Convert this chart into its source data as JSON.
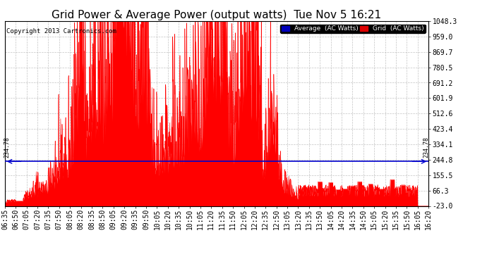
{
  "title": "Grid Power & Average Power (output watts)  Tue Nov 5 16:21",
  "copyright": "Copyright 2013 Cartronics.com",
  "legend_labels": [
    "Average  (AC Watts)",
    "Grid  (AC Watts)"
  ],
  "legend_colors": [
    "#0000bb",
    "#dd0000"
  ],
  "avg_line_value": 234.78,
  "avg_line_color": "#0000cc",
  "fill_color": "#ff0000",
  "background_color": "#ffffff",
  "plot_bg_color": "#ffffff",
  "grid_color": "#aaaaaa",
  "ytick_labels_right": [
    "1048.3",
    "959.0",
    "869.7",
    "780.5",
    "691.2",
    "601.9",
    "512.6",
    "423.4",
    "334.1",
    "244.8",
    "155.5",
    "66.3",
    "-23.0"
  ],
  "ytick_values_right": [
    1048.3,
    959.0,
    869.7,
    780.5,
    691.2,
    601.9,
    512.6,
    423.4,
    334.1,
    244.8,
    155.5,
    66.3,
    -23.0
  ],
  "ymin": -23.0,
  "ymax": 1048.3,
  "xstart_minutes": 395,
  "xend_minutes": 980,
  "xtick_interval_minutes": 15,
  "title_fontsize": 11,
  "axis_fontsize": 7,
  "copyright_fontsize": 6.5
}
